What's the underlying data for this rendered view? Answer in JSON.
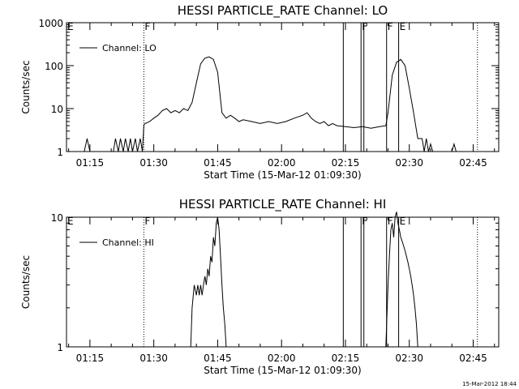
{
  "footer_stamp": "15-Mar-2012 18:44",
  "chart_data": [
    {
      "type": "line",
      "title": "HESSI PARTICLE_RATE Channel: LO",
      "xlabel": "Start Time (15-Mar-12 01:09:30)",
      "ylabel": "Counts/sec",
      "yscale": "log",
      "xlim": [
        "01:09:30",
        "02:51:00"
      ],
      "ylim": [
        1,
        1000
      ],
      "x_ticks": [
        "01:15",
        "01:30",
        "01:45",
        "02:00",
        "02:15",
        "02:30",
        "02:45"
      ],
      "y_ticks": [
        "1",
        "10",
        "100",
        "1000"
      ],
      "legend": {
        "entries": [
          "Channel: LO"
        ],
        "position": "top-left"
      },
      "grid": false,
      "color": "#000000",
      "markers": [
        {
          "label": "E",
          "time": "01:09:30",
          "style": "none"
        },
        {
          "label": "F",
          "time": "01:27:40",
          "style": "dotted"
        },
        {
          "label": "",
          "time": "02:14:30",
          "style": "solid"
        },
        {
          "label": "F",
          "time": "02:18:40",
          "style": "solid"
        },
        {
          "label": "",
          "time": "02:19:20",
          "style": "solid"
        },
        {
          "label": "F",
          "time": "02:24:40",
          "style": "solid"
        },
        {
          "label": "E",
          "time": "02:27:30",
          "style": "solid"
        },
        {
          "label": "",
          "time": "02:46:00",
          "style": "dotted"
        }
      ],
      "series": [
        {
          "name": "Channel: LO",
          "x": [
            "01:09:30",
            "01:13:40",
            "01:14:20",
            "01:15:00",
            "01:20:30",
            "01:21:00",
            "01:21:40",
            "01:22:10",
            "01:22:50",
            "01:23:20",
            "01:24:00",
            "01:24:30",
            "01:25:00",
            "01:25:40",
            "01:26:10",
            "01:26:50",
            "01:27:20",
            "01:27:40",
            "01:28:00",
            "01:29:00",
            "01:30:00",
            "01:31:00",
            "01:32:00",
            "01:33:00",
            "01:34:00",
            "01:35:00",
            "01:36:00",
            "01:37:00",
            "01:38:00",
            "01:39:00",
            "01:40:00",
            "01:41:00",
            "01:42:00",
            "01:43:00",
            "01:44:00",
            "01:45:00",
            "01:46:00",
            "01:47:00",
            "01:48:00",
            "01:49:00",
            "01:50:00",
            "01:51:00",
            "01:53:00",
            "01:55:00",
            "01:57:00",
            "01:59:00",
            "02:01:00",
            "02:03:00",
            "02:05:00",
            "02:06:00",
            "02:07:00",
            "02:08:00",
            "02:09:00",
            "02:10:00",
            "02:11:00",
            "02:12:00",
            "02:13:00",
            "02:15:00",
            "02:17:00",
            "02:19:00",
            "02:21:00",
            "02:23:00",
            "02:24:30",
            "02:25:00",
            "02:26:00",
            "02:27:00",
            "02:28:00",
            "02:29:00",
            "02:30:00",
            "02:31:00",
            "02:32:00",
            "02:33:00",
            "02:33:30",
            "02:34:00",
            "02:34:30",
            "02:35:00",
            "02:35:30",
            "02:36:00",
            "02:37:00",
            "02:37:30",
            "02:38:00",
            "02:40:00",
            "02:40:30",
            "02:41:00"
          ],
          "y": [
            1,
            1,
            2,
            1,
            1,
            2,
            1,
            2,
            1,
            2,
            1,
            2,
            1,
            2,
            1,
            2,
            1,
            4.2,
            4.5,
            5,
            6,
            7,
            9,
            10,
            8,
            9,
            8,
            10,
            9,
            14,
            40,
            110,
            150,
            160,
            140,
            70,
            8,
            6,
            7,
            6,
            5,
            5.5,
            5,
            4.5,
            5,
            4.5,
            5,
            6,
            7,
            8,
            6,
            5,
            4.5,
            5,
            4,
            4.5,
            4,
            3.8,
            3.6,
            3.8,
            3.5,
            3.8,
            4,
            8,
            60,
            120,
            140,
            100,
            30,
            8,
            2,
            2,
            1,
            2,
            1,
            1.5,
            1,
            1,
            1,
            1,
            1,
            1,
            1.5,
            1
          ]
        }
      ]
    },
    {
      "type": "line",
      "title": "HESSI PARTICLE_RATE Channel: HI",
      "xlabel": "Start Time (15-Mar-12 01:09:30)",
      "ylabel": "Counts/sec",
      "yscale": "log",
      "xlim": [
        "01:09:30",
        "02:51:00"
      ],
      "ylim": [
        1,
        10
      ],
      "x_ticks": [
        "01:15",
        "01:30",
        "01:45",
        "02:00",
        "02:15",
        "02:30",
        "02:45"
      ],
      "y_ticks": [
        "1",
        "10"
      ],
      "legend": {
        "entries": [
          "Channel: HI"
        ],
        "position": "top-left"
      },
      "grid": false,
      "color": "#000000",
      "markers": [
        {
          "label": "E",
          "time": "01:09:30",
          "style": "none"
        },
        {
          "label": "F",
          "time": "01:27:40",
          "style": "dotted"
        },
        {
          "label": "",
          "time": "02:14:30",
          "style": "solid"
        },
        {
          "label": "F",
          "time": "02:18:40",
          "style": "solid"
        },
        {
          "label": "",
          "time": "02:19:20",
          "style": "solid"
        },
        {
          "label": "F",
          "time": "02:24:40",
          "style": "solid"
        },
        {
          "label": "E",
          "time": "02:27:30",
          "style": "solid"
        },
        {
          "label": "",
          "time": "02:46:00",
          "style": "dotted"
        }
      ],
      "series": [
        {
          "name": "Channel: HI",
          "x": [
            "01:38:40",
            "01:39:00",
            "01:39:30",
            "01:40:00",
            "01:40:20",
            "01:40:40",
            "01:41:00",
            "01:41:20",
            "01:41:40",
            "01:42:00",
            "01:42:20",
            "01:42:40",
            "01:43:00",
            "01:43:20",
            "01:43:40",
            "01:44:00",
            "01:44:20",
            "01:44:40",
            "01:45:00",
            "01:45:20",
            "01:45:40",
            "01:46:00",
            "01:46:20",
            "01:46:40",
            "01:47:00",
            "02:24:30",
            "02:25:00",
            "02:25:20",
            "02:25:40",
            "02:26:00",
            "02:26:20",
            "02:26:40",
            "02:27:00",
            "02:27:20",
            "02:27:40",
            "02:28:00",
            "02:28:20",
            "02:28:40",
            "02:29:00",
            "02:29:20",
            "02:29:40",
            "02:30:00",
            "02:30:20",
            "02:30:40",
            "02:31:00",
            "02:31:20",
            "02:31:40",
            "02:32:00"
          ],
          "y": [
            1,
            2,
            3,
            2.5,
            3,
            2.5,
            3,
            2.5,
            3,
            3.5,
            3,
            4,
            3.5,
            5,
            4.5,
            7,
            6,
            9,
            10,
            8,
            5,
            3,
            2,
            1.5,
            1,
            1,
            3,
            5,
            8,
            9,
            7,
            10,
            11,
            9,
            8,
            7,
            6.5,
            6,
            5.5,
            5,
            4.5,
            4,
            3.5,
            3,
            2.5,
            2,
            1.5,
            1
          ]
        }
      ]
    }
  ]
}
